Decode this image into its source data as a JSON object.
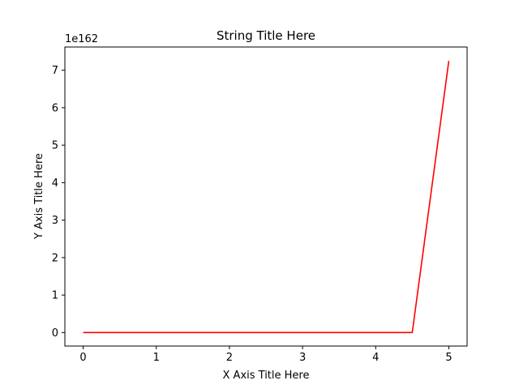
{
  "chart_data": {
    "type": "line",
    "title": "String Title Here",
    "xlabel": "X Axis Title Here",
    "ylabel": "Y Axis Title Here",
    "y_scale_label": "1e162",
    "y_multiplier_exponent": 162,
    "xlim": [
      -0.25,
      5.25
    ],
    "ylim": [
      -0.36,
      7.62
    ],
    "x_ticks": [
      0,
      1,
      2,
      3,
      4,
      5
    ],
    "y_ticks": [
      0,
      1,
      2,
      3,
      4,
      5,
      6,
      7
    ],
    "grid": false,
    "series": [
      {
        "color": "#ff0000",
        "x": [
          0,
          0.5,
          1,
          1.5,
          2,
          2.5,
          3,
          3.5,
          4,
          4.5,
          5
        ],
        "y": [
          0,
          0,
          0,
          0,
          0,
          0,
          0,
          0,
          0,
          0,
          7.25
        ]
      }
    ]
  }
}
